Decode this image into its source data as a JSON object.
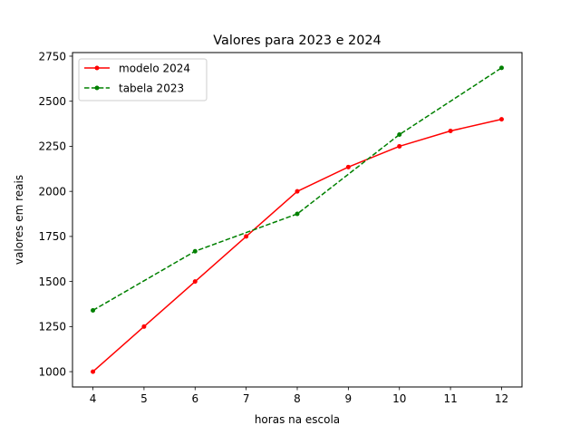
{
  "chart_data": {
    "type": "line",
    "title": "Valores para 2023 e 2024",
    "xlabel": "horas na escola",
    "ylabel": "valores em reais",
    "xlim": [
      3.6,
      12.4
    ],
    "ylim": [
      915,
      2770
    ],
    "xticks": [
      4,
      5,
      6,
      7,
      8,
      9,
      10,
      11,
      12
    ],
    "yticks": [
      1000,
      1250,
      1500,
      1750,
      2000,
      2250,
      2500,
      2750
    ],
    "grid": false,
    "legend_position": "top-left",
    "series": [
      {
        "name": "modelo 2024",
        "color": "#ff0000",
        "line_style": "solid",
        "marker": "dot",
        "x": [
          4,
          5,
          6,
          7,
          8,
          9,
          10,
          11,
          12
        ],
        "y": [
          1000,
          1250,
          1500,
          1750,
          2000,
          2135,
          2250,
          2335,
          2400
        ]
      },
      {
        "name": "tabela 2023",
        "color": "#008000",
        "line_style": "dashed",
        "marker": "dot",
        "x": [
          4,
          6,
          8,
          10,
          12
        ],
        "y": [
          1340,
          1668,
          1875,
          2315,
          2685
        ]
      }
    ]
  }
}
